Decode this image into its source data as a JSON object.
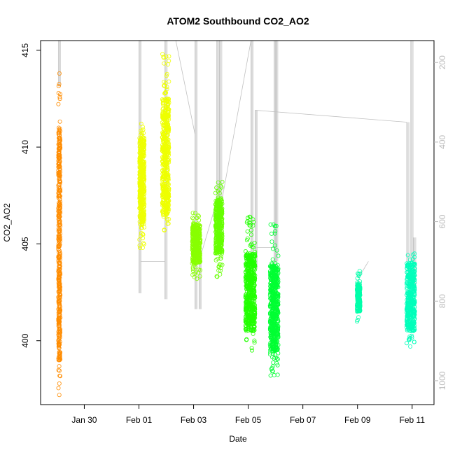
{
  "chart_data": {
    "type": "scatter",
    "title": "ATOM2 Southbound CO2_AO2",
    "xlabel": "Date",
    "ylabel": "CO2_AO2",
    "ylim": [
      396.7,
      415.5
    ],
    "y_ticks": [
      400,
      405,
      410,
      415
    ],
    "x_range_days": [
      28.4,
      42.8
    ],
    "x_ticks": [
      {
        "day": 30,
        "label": "Jan 30"
      },
      {
        "day": 32,
        "label": "Feb 01"
      },
      {
        "day": 34,
        "label": "Feb 03"
      },
      {
        "day": 36,
        "label": "Feb 05"
      },
      {
        "day": 38,
        "label": "Feb 07"
      },
      {
        "day": 40,
        "label": "Feb 09"
      },
      {
        "day": 42,
        "label": "Feb 11"
      }
    ],
    "right_axis": {
      "range": [
        1060,
        145
      ],
      "ticks": [
        200,
        400,
        600,
        800,
        1000
      ],
      "color": "#bbbbbb"
    },
    "series": [
      {
        "color": "#ff8c00",
        "days": [
          29.05,
          29.12
        ],
        "y_range": [
          397.2,
          413.8
        ],
        "core": [
          399.0,
          411.0
        ],
        "density": 420
      },
      {
        "color": "#eeff00",
        "days": [
          32.02,
          32.2
        ],
        "y_range": [
          404.8,
          411.2
        ],
        "core": [
          406.0,
          410.5
        ],
        "density": 420
      },
      {
        "color": "#eeff00",
        "days": [
          32.85,
          33.1
        ],
        "y_range": [
          405.7,
          414.8
        ],
        "core": [
          406.5,
          412.5
        ],
        "density": 520
      },
      {
        "color": "#88ff00",
        "days": [
          33.95,
          34.25
        ],
        "y_range": [
          403.2,
          406.6
        ],
        "core": [
          404.0,
          406.0
        ],
        "density": 380
      },
      {
        "color": "#66ff00",
        "days": [
          34.8,
          35.05
        ],
        "y_range": [
          403.3,
          408.2
        ],
        "core": [
          404.5,
          407.3
        ],
        "density": 380
      },
      {
        "color": "#22ff00",
        "days": [
          35.9,
          36.25
        ],
        "y_range": [
          399.5,
          406.4
        ],
        "core": [
          400.5,
          404.5
        ],
        "density": 560
      },
      {
        "color": "#00ff33",
        "days": [
          36.8,
          37.1
        ],
        "y_range": [
          398.2,
          406.0
        ],
        "core": [
          399.5,
          404.0
        ],
        "density": 560
      },
      {
        "color": "#00ffaa",
        "days": [
          39.98,
          40.1
        ],
        "y_range": [
          401.0,
          403.6
        ],
        "core": [
          401.5,
          403.0
        ],
        "density": 200
      },
      {
        "color": "#00ffbb",
        "days": [
          41.8,
          42.1
        ],
        "y_range": [
          399.7,
          404.5
        ],
        "core": [
          400.5,
          404.0
        ],
        "density": 440
      }
    ],
    "grey_trace": {
      "color": "#c0c0c0",
      "segments": [
        {
          "from": [
            29.05,
            145
          ],
          "to": [
            29.05,
            260
          ]
        },
        {
          "from": [
            32.0,
            145
          ],
          "to": [
            32.0,
            780
          ]
        },
        {
          "from": [
            32.05,
            700
          ],
          "to": [
            32.95,
            700
          ]
        },
        {
          "from": [
            32.95,
            145
          ],
          "to": [
            32.95,
            795
          ]
        },
        {
          "from": [
            33.35,
            145
          ],
          "to": [
            34.05,
            380
          ]
        },
        {
          "from": [
            34.05,
            145
          ],
          "to": [
            34.05,
            820
          ]
        },
        {
          "from": [
            34.2,
            820
          ],
          "to": [
            34.2,
            700
          ]
        },
        {
          "from": [
            34.2,
            700
          ],
          "to": [
            34.8,
            560
          ]
        },
        {
          "from": [
            34.85,
            145
          ],
          "to": [
            34.85,
            560
          ]
        },
        {
          "from": [
            34.95,
            560
          ],
          "to": [
            34.95,
            145
          ]
        },
        {
          "from": [
            35.0,
            560
          ],
          "to": [
            36.1,
            145
          ]
        },
        {
          "from": [
            36.1,
            145
          ],
          "to": [
            36.1,
            720
          ]
        },
        {
          "from": [
            36.25,
            720
          ],
          "to": [
            36.25,
            320
          ]
        },
        {
          "from": [
            36.25,
            320
          ],
          "to": [
            41.8,
            350
          ]
        },
        {
          "from": [
            41.8,
            350
          ],
          "to": [
            41.8,
            700
          ]
        },
        {
          "from": [
            36.3,
            665
          ],
          "to": [
            36.95,
            665
          ]
        },
        {
          "from": [
            36.95,
            145
          ],
          "to": [
            36.95,
            820
          ]
        },
        {
          "from": [
            37.0,
            145
          ],
          "to": [
            37.0,
            700
          ]
        },
        {
          "from": [
            40.05,
            740
          ],
          "to": [
            40.4,
            700
          ]
        },
        {
          "from": [
            41.95,
            145
          ],
          "to": [
            41.95,
            700
          ]
        },
        {
          "from": [
            42.05,
            640
          ],
          "to": [
            42.05,
            760
          ]
        }
      ]
    }
  }
}
